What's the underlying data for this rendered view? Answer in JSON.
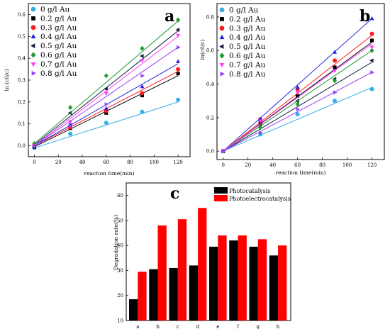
{
  "chart_data": [
    {
      "type": "scatter",
      "panel_label": "a",
      "xlabel": "reaction time(min)",
      "ylabel": "ln (c0/c)",
      "xlim": [
        -5,
        130
      ],
      "ylim": [
        -0.05,
        0.65
      ],
      "xticks": [
        "0",
        "20",
        "40",
        "60",
        "80",
        "100",
        "120"
      ],
      "yticks": [
        "0.0",
        "0.1",
        "0.2",
        "0.3",
        "0.4",
        "0.5",
        "0.6"
      ],
      "x": [
        0,
        30,
        60,
        90,
        120
      ],
      "legend_position": "top-left",
      "series": [
        {
          "name": "0   g/l  Au",
          "color": "#36aee8",
          "marker": "circle",
          "values": [
            -0.01,
            0.055,
            0.105,
            0.155,
            0.21
          ],
          "fit": [
            -0.01,
            0.2
          ]
        },
        {
          "name": "0.2 g/l  Au",
          "color": "#000000",
          "marker": "square",
          "values": [
            -0.005,
            0.08,
            0.15,
            0.23,
            0.33
          ],
          "fit": [
            -0.005,
            0.32
          ]
        },
        {
          "name": "0.3 g/l  Au",
          "color": "#ff1a1a",
          "marker": "circle",
          "values": [
            0.0,
            0.085,
            0.16,
            0.24,
            0.35
          ],
          "fit": [
            0.0,
            0.34
          ]
        },
        {
          "name": "0.4 g/l  Au",
          "color": "#2222dd",
          "marker": "triangle-up",
          "values": [
            0.0,
            0.1,
            0.17,
            0.27,
            0.385
          ],
          "fit": [
            0.0,
            0.375
          ]
        },
        {
          "name": "0.5 g/l  Au",
          "color": "#0b1f3a",
          "marker": "triangle-left",
          "values": [
            0.005,
            0.15,
            0.26,
            0.41,
            0.53
          ],
          "fit": [
            0.005,
            0.525
          ]
        },
        {
          "name": "0.6 g/l  Au",
          "color": "#1f9a2e",
          "marker": "diamond",
          "values": [
            0.01,
            0.175,
            0.32,
            0.445,
            0.575
          ],
          "fit": [
            0.01,
            0.57
          ]
        },
        {
          "name": "0.7 g/l  Au",
          "color": "#ff3dff",
          "marker": "triangle-down",
          "values": [
            0.0,
            0.11,
            0.24,
            0.39,
            0.505
          ],
          "fit": [
            0.0,
            0.5
          ]
        },
        {
          "name": "0.8 g/l  Au",
          "color": "#9b3dff",
          "marker": "triangle-right",
          "values": [
            0.0,
            0.09,
            0.19,
            0.32,
            0.45
          ],
          "fit": [
            0.0,
            0.45
          ]
        }
      ]
    },
    {
      "type": "scatter",
      "panel_label": "b",
      "xlabel": "reaction time(min)",
      "ylabel": "ln(c0/c)",
      "xlim": [
        -5,
        130
      ],
      "ylim": [
        -0.05,
        0.88
      ],
      "xticks": [
        "0",
        "20",
        "40",
        "60",
        "80",
        "100",
        "120"
      ],
      "yticks": [
        "0.0",
        "0.2",
        "0.4",
        "0.6",
        "0.8"
      ],
      "x": [
        0,
        30,
        60,
        90,
        120
      ],
      "legend_position": "top-left",
      "series": [
        {
          "name": "0   g/l  Au",
          "color": "#36aee8",
          "marker": "circle",
          "values": [
            0.0,
            0.1,
            0.22,
            0.3,
            0.37
          ],
          "fit": [
            0.0,
            0.38
          ]
        },
        {
          "name": "0.2 g/l  Au",
          "color": "#000000",
          "marker": "square",
          "values": [
            0.0,
            0.17,
            0.33,
            0.5,
            0.66
          ],
          "fit": [
            0.0,
            0.65
          ]
        },
        {
          "name": "0.3 g/l  Au",
          "color": "#ff1a1a",
          "marker": "circle",
          "values": [
            0.0,
            0.19,
            0.37,
            0.54,
            0.7
          ],
          "fit": [
            0.0,
            0.69
          ]
        },
        {
          "name": "0.4 g/l  Au",
          "color": "#2222dd",
          "marker": "triangle-up",
          "values": [
            0.0,
            0.19,
            0.38,
            0.59,
            0.79
          ],
          "fit": [
            0.0,
            0.79
          ]
        },
        {
          "name": "0.5 g/l  Au",
          "color": "#0b1f3a",
          "marker": "triangle-left",
          "values": [
            0.0,
            0.15,
            0.3,
            0.43,
            0.54
          ],
          "fit": [
            0.0,
            0.53
          ]
        },
        {
          "name": "0.6 g/l  Au",
          "color": "#1f9a2e",
          "marker": "diamond",
          "values": [
            0.0,
            0.14,
            0.28,
            0.42,
            0.6
          ],
          "fit": [
            0.0,
            0.6
          ]
        },
        {
          "name": "0.7 g/l  Au",
          "color": "#ff3dff",
          "marker": "triangle-down",
          "values": [
            0.0,
            0.18,
            0.35,
            0.48,
            0.62
          ],
          "fit": [
            0.0,
            0.64
          ]
        },
        {
          "name": "0.8 g/l  Au",
          "color": "#9b3dff",
          "marker": "triangle-right",
          "values": [
            0.0,
            0.11,
            0.25,
            0.35,
            0.47
          ],
          "fit": [
            0.0,
            0.47
          ]
        }
      ]
    },
    {
      "type": "bar",
      "panel_label": "c",
      "xlabel": "",
      "ylabel": "Degradation rate(%)",
      "ylim": [
        10,
        65
      ],
      "yticks": [
        "10",
        "20",
        "30",
        "40",
        "50",
        "60"
      ],
      "categories": [
        "a",
        "b",
        "c",
        "d",
        "e",
        "f",
        "g",
        "h"
      ],
      "legend_position": "top-left",
      "series": [
        {
          "name": "Photocatalysis",
          "color": "#000000",
          "values": [
            18.5,
            30.5,
            31,
            32,
            39.5,
            42,
            39.5,
            36
          ]
        },
        {
          "name": "Photoelectrocatalysis",
          "color": "#ff0000",
          "values": [
            29.5,
            48,
            50.5,
            55,
            44,
            44,
            42.5,
            40
          ]
        }
      ]
    }
  ]
}
